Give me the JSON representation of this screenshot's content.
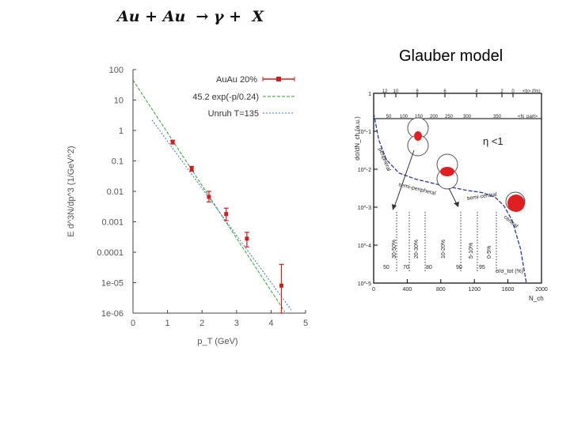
{
  "header": {
    "equation": "Au + Au  → γ +  X",
    "right_title": "Glauber model"
  },
  "chart_data": [
    {
      "type": "scatter",
      "xlabel": "p_T (GeV)",
      "ylabel": "E d^3N/dp^3  (1/GeV^2)",
      "xlim": [
        0,
        5
      ],
      "ylim": [
        1e-06,
        100
      ],
      "yscale": "log",
      "x_ticks": [
        "0",
        "1",
        "2",
        "3",
        "4",
        "5"
      ],
      "y_ticks": [
        "100",
        "10",
        "1",
        "0.1",
        "0.01",
        "0.001",
        "0.0001",
        "1e-05",
        "1e-06"
      ],
      "legend_position": "top-right",
      "series": [
        {
          "name": "AuAu 20%",
          "kind": "points-errorbars",
          "color": "#cc2020",
          "points": [
            {
              "x": 1.15,
              "y": 0.42,
              "ylo": 0.36,
              "yhi": 0.48
            },
            {
              "x": 1.7,
              "y": 0.055,
              "ylo": 0.046,
              "yhi": 0.066
            },
            {
              "x": 2.2,
              "y": 0.0066,
              "ylo": 0.0045,
              "yhi": 0.01
            },
            {
              "x": 2.7,
              "y": 0.0018,
              "ylo": 0.0011,
              "yhi": 0.0028
            },
            {
              "x": 3.3,
              "y": 0.00028,
              "ylo": 0.00015,
              "yhi": 0.00045
            },
            {
              "x": 4.3,
              "y": 8e-06,
              "ylo": 1e-06,
              "yhi": 4e-05
            }
          ]
        },
        {
          "name": "45.2 exp(-p/0.24)",
          "kind": "line",
          "color": "#3a9a3a",
          "dash": "dash",
          "points": [
            {
              "x": 0,
              "y": 45.2
            },
            {
              "x": 4.4,
              "y": 1.1e-06
            }
          ]
        },
        {
          "name": "Unruh T=135",
          "kind": "line",
          "color": "#3a78c8",
          "dash": "dot",
          "points": [
            {
              "x": 0.55,
              "y": 2.2
            },
            {
              "x": 4.6,
              "y": 1.2e-06
            }
          ]
        }
      ]
    },
    {
      "type": "line",
      "xlabel": "N_ch",
      "ylabel": "dσ/dN_ch (a.u.)",
      "xlim": [
        0,
        2000
      ],
      "ylim": [
        1e-05,
        1
      ],
      "yscale": "log",
      "x_ticks": [
        "0",
        "400",
        "800",
        "1200",
        "1600",
        "2000"
      ],
      "y_ticks": [
        "1",
        "10^-1",
        "10^-2",
        "10^-3",
        "10^-4",
        "10^-5"
      ],
      "top_axis_1": {
        "label": "<b> (fm)",
        "ticks": [
          "12",
          "10",
          "8",
          "6",
          "4",
          "2",
          "0"
        ]
      },
      "top_axis_2": {
        "label": "<N_part>",
        "ticks": [
          "50",
          "100",
          "150",
          "200",
          "250",
          "300",
          "350"
        ]
      },
      "annotation": "η <1",
      "region_labels": [
        "peripheral",
        "semi-peripheral",
        "semi-central",
        "central"
      ],
      "centrality_bins": [
        "30-50%",
        "20-30%",
        "10-20%",
        "5-10%",
        "0-5%"
      ],
      "centrality_scale_label": "σ/σ_tot (%)",
      "centrality_scale_ticks": [
        "50",
        "70",
        "80",
        "90",
        "95"
      ],
      "series": [
        {
          "name": "",
          "color": "#2a3a9a",
          "dash": "dash",
          "points": [
            {
              "x": 0,
              "y": 0.3
            },
            {
              "x": 60,
              "y": 0.06
            },
            {
              "x": 150,
              "y": 0.018
            },
            {
              "x": 300,
              "y": 0.008
            },
            {
              "x": 500,
              "y": 0.0055
            },
            {
              "x": 800,
              "y": 0.0038
            },
            {
              "x": 1100,
              "y": 0.0028
            },
            {
              "x": 1300,
              "y": 0.0024
            },
            {
              "x": 1450,
              "y": 0.0018
            },
            {
              "x": 1550,
              "y": 0.0011
            },
            {
              "x": 1650,
              "y": 0.00045
            },
            {
              "x": 1750,
              "y": 8e-05
            },
            {
              "x": 1820,
              "y": 1e-05
            }
          ]
        }
      ]
    }
  ]
}
